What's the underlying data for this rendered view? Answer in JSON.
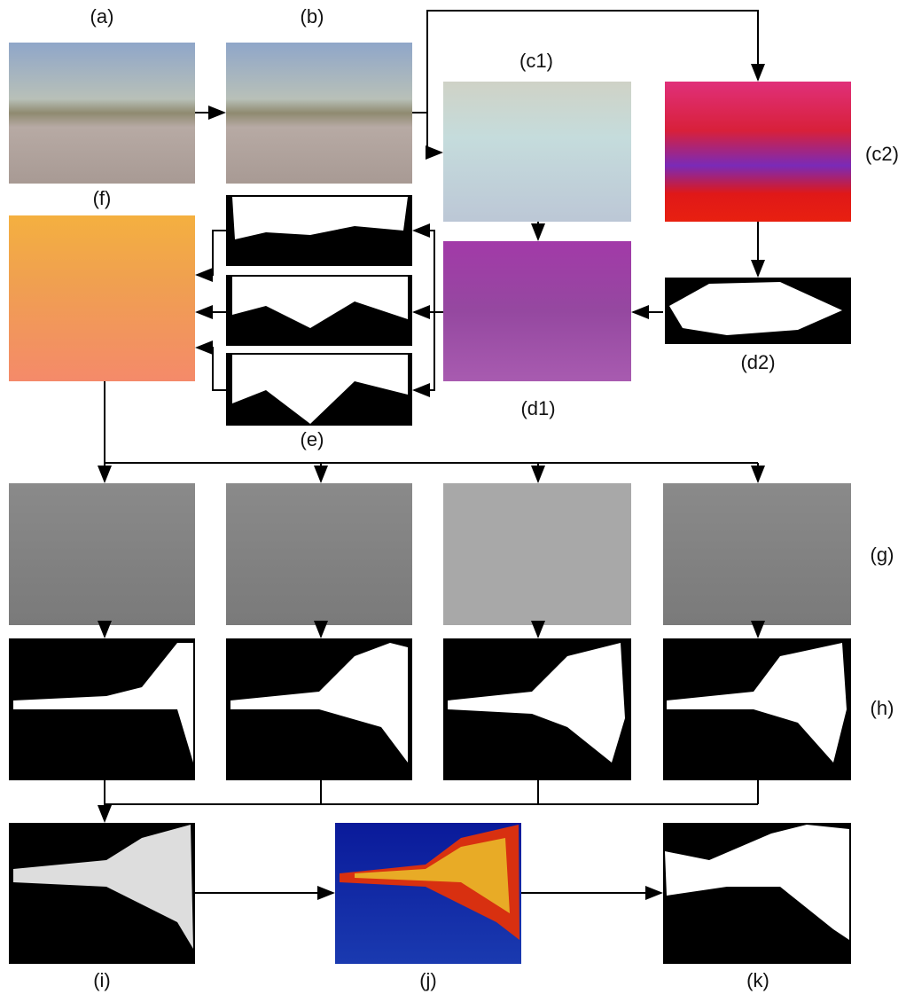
{
  "labels": {
    "a": "(a)",
    "b": "(b)",
    "c1": "(c1)",
    "c2": "(c2)",
    "d1": "(d1)",
    "d2": "(d2)",
    "e": "(e)",
    "f": "(f)",
    "g": "(g)",
    "h": "(h)",
    "i": "(i)",
    "j": "(j)",
    "k": "(k)"
  }
}
